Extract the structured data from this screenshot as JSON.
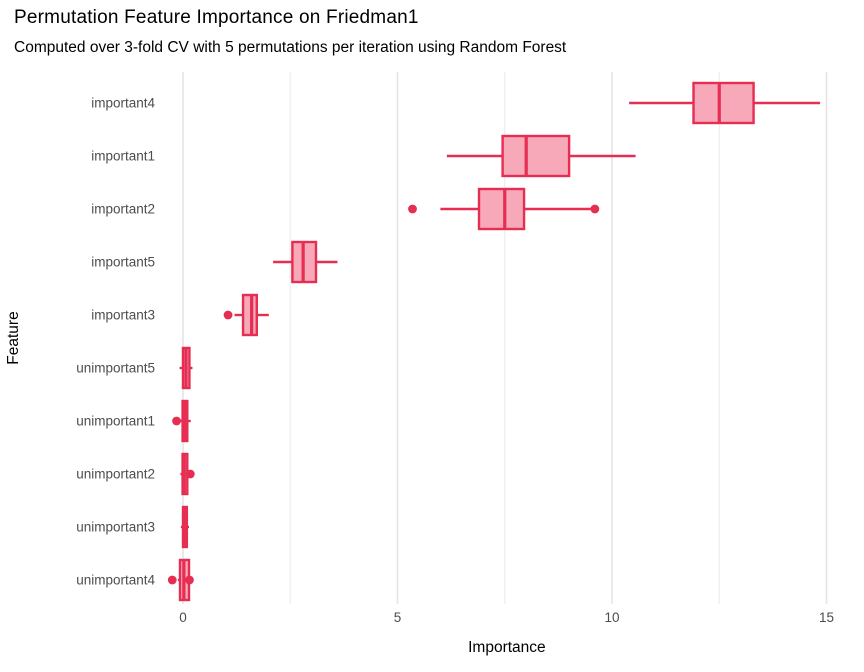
{
  "chart_data": {
    "type": "boxplot",
    "orientation": "horizontal",
    "title": "Permutation Feature Importance on Friedman1",
    "subtitle": "Computed over 3-fold CV with 5 permutations per iteration using Random Forest",
    "xlabel": "Importance",
    "ylabel": "Feature",
    "xlim": [
      -0.45,
      15.55
    ],
    "x_major_ticks": [
      0,
      5,
      10,
      15
    ],
    "x_minor_ticks": [
      2.5,
      7.5,
      12.5
    ],
    "grid": "vertical-only",
    "legend": "none",
    "categories": [
      "important4",
      "important1",
      "important2",
      "important5",
      "important3",
      "unimportant5",
      "unimportant1",
      "unimportant2",
      "unimportant3",
      "unimportant4"
    ],
    "series": [
      {
        "feature": "important4",
        "whisker_low": 10.4,
        "q1": 11.9,
        "median": 12.5,
        "q3": 13.3,
        "whisker_high": 14.85,
        "outliers": []
      },
      {
        "feature": "important1",
        "whisker_low": 6.15,
        "q1": 7.45,
        "median": 8.0,
        "q3": 9.0,
        "whisker_high": 10.55,
        "outliers": []
      },
      {
        "feature": "important2",
        "whisker_low": 6.0,
        "q1": 6.9,
        "median": 7.5,
        "q3": 7.95,
        "whisker_high": 9.5,
        "outliers": [
          5.35,
          9.6
        ]
      },
      {
        "feature": "important5",
        "whisker_low": 2.1,
        "q1": 2.55,
        "median": 2.8,
        "q3": 3.1,
        "whisker_high": 3.6,
        "outliers": []
      },
      {
        "feature": "important3",
        "whisker_low": 1.2,
        "q1": 1.4,
        "median": 1.6,
        "q3": 1.72,
        "whisker_high": 2.0,
        "outliers": [
          1.05
        ]
      },
      {
        "feature": "unimportant5",
        "whisker_low": -0.08,
        "q1": 0.0,
        "median": 0.07,
        "q3": 0.15,
        "whisker_high": 0.22,
        "outliers": []
      },
      {
        "feature": "unimportant1",
        "whisker_low": -0.08,
        "q1": -0.01,
        "median": 0.04,
        "q3": 0.1,
        "whisker_high": 0.18,
        "outliers": [
          -0.15
        ]
      },
      {
        "feature": "unimportant2",
        "whisker_low": -0.06,
        "q1": -0.01,
        "median": 0.03,
        "q3": 0.1,
        "whisker_high": 0.14,
        "outliers": [
          0.17
        ]
      },
      {
        "feature": "unimportant3",
        "whisker_low": -0.05,
        "q1": 0.0,
        "median": 0.03,
        "q3": 0.09,
        "whisker_high": 0.14,
        "outliers": []
      },
      {
        "feature": "unimportant4",
        "whisker_low": -0.12,
        "q1": -0.07,
        "median": 0.02,
        "q3": 0.14,
        "whisker_high": 0.2,
        "outliers": [
          -0.25,
          0.15
        ]
      }
    ],
    "colors": {
      "box_stroke": "#e62d52",
      "box_fill": "#f7a9b9",
      "grid_major": "#e4e4e4",
      "grid_minor": "#efefef",
      "axis_text": "#4d4d4d",
      "axis_title": "#000000",
      "background": "#ffffff"
    }
  }
}
